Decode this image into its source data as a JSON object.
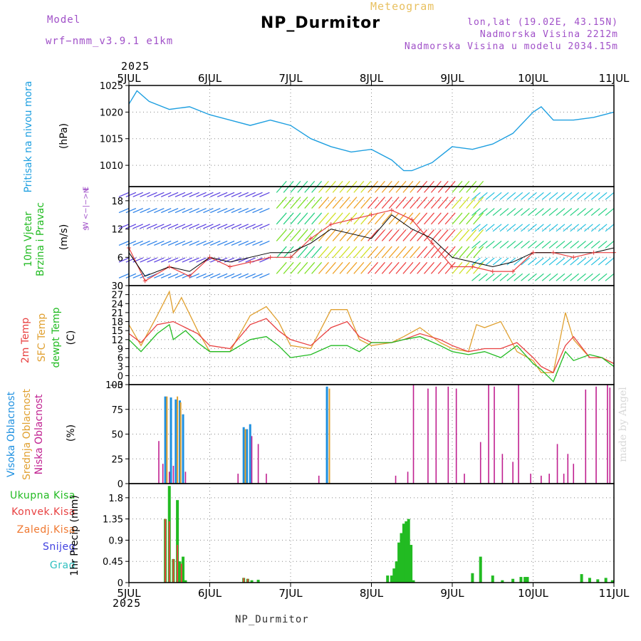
{
  "header": {
    "model_label": "Model",
    "model_name": "wrf−nmm_v3.9.1 e1km",
    "meteogram": "Meteogram",
    "title": "NP_Durmitor",
    "lonlat": "lon,lat (19.02E, 43.15N)",
    "altitude": "Nadmorska Visina 2212m",
    "model_altitude": "Nadmorska Visina u modelu 2034.15m",
    "year_top": "2025",
    "year_bottom": "2025",
    "footer": "NP_Durmitor",
    "credit": "made by Angel"
  },
  "colors": {
    "pressure": "#1e9fe0",
    "temp2m": "#e84040",
    "sfc_temp": "#e0a030",
    "dewpt": "#22bb22",
    "high_cloud": "#1e90e0",
    "mid_cloud": "#e0a030",
    "low_cloud": "#c02090",
    "total_precip": "#22bb22",
    "conv_precip": "#e84040",
    "gridline": "#888888"
  },
  "panel_labels": {
    "pressure": [
      "Pritisak na nivou mora",
      "(hPa)"
    ],
    "wind": [
      "10m Vjetar",
      "Brzina i Pravac",
      "(m/s)"
    ],
    "wind_compass": [
      "N",
      "W <−|−> E",
      "S"
    ],
    "temp": [
      "2m Temp",
      "SFC Temp",
      "dewpt Temp",
      "(C)"
    ],
    "cloud": [
      "Visoka Oblacnost",
      "Srednja Oblacnost",
      "Niska Oblacnost",
      "(%)"
    ],
    "precip_legend": [
      "Ukupna Kisa",
      "Konvek.Kisa",
      "Zaledj.Kisa",
      "Snijeg",
      "Grad"
    ],
    "precip_unit": "1hr Precip (mm)"
  },
  "chart_data": [
    {
      "type": "line",
      "name": "pressure",
      "x_labels": [
        "5JUL",
        "6JUL",
        "7JUL",
        "8JUL",
        "9JUL",
        "10JUL",
        "11JUL"
      ],
      "x_unit": "day (5 Jul 00 = 0)",
      "ylim": [
        1006,
        1025
      ],
      "yticks": [
        1010,
        1015,
        1020,
        1025
      ],
      "series": [
        {
          "key": "pressure",
          "x": [
            0,
            0.1,
            0.25,
            0.5,
            0.75,
            1.0,
            1.25,
            1.5,
            1.75,
            2.0,
            2.25,
            2.5,
            2.75,
            3.0,
            3.25,
            3.4,
            3.5,
            3.75,
            4.0,
            4.25,
            4.5,
            4.75,
            5.0,
            5.1,
            5.25,
            5.5,
            5.75,
            6.0
          ],
          "values": [
            1021.5,
            1024,
            1022,
            1020.5,
            1021,
            1019.5,
            1018.5,
            1017.5,
            1018.5,
            1017.5,
            1015,
            1013.5,
            1012.5,
            1013,
            1011,
            1009,
            1009,
            1010.5,
            1013.5,
            1013,
            1014,
            1016,
            1020,
            1021,
            1018.5,
            1018.5,
            1019,
            1020
          ]
        }
      ]
    },
    {
      "type": "line",
      "name": "wind",
      "ylim": [
        0,
        21
      ],
      "yticks": [
        0,
        6,
        12,
        18
      ],
      "series": [
        {
          "key": "speed",
          "x": [
            0,
            0.2,
            0.5,
            0.75,
            1.0,
            1.25,
            1.5,
            1.75,
            2.0,
            2.25,
            2.5,
            2.75,
            3.0,
            3.25,
            3.5,
            3.75,
            4.0,
            4.25,
            4.5,
            4.75,
            5.0,
            5.25,
            5.5,
            5.75,
            6.0
          ],
          "values": [
            7,
            2,
            4,
            3,
            6,
            5,
            6,
            7,
            7,
            9,
            12,
            11,
            10,
            15,
            12,
            10,
            6,
            5,
            4,
            5,
            7,
            7,
            7,
            7,
            8
          ]
        },
        {
          "key": "gust",
          "x": [
            0,
            0.2,
            0.5,
            0.75,
            1.0,
            1.25,
            1.5,
            1.75,
            2.0,
            2.25,
            2.5,
            2.75,
            3.0,
            3.25,
            3.5,
            3.75,
            4.0,
            4.25,
            4.5,
            4.75,
            5.0,
            5.25,
            5.5,
            5.75,
            6.0
          ],
          "values": [
            8,
            1,
            4,
            2,
            6,
            4,
            5,
            6,
            6,
            10,
            13,
            14,
            15,
            16,
            14,
            9,
            4,
            4,
            3,
            3,
            7,
            7,
            6,
            7,
            7
          ]
        }
      ]
    },
    {
      "type": "line",
      "name": "temperature",
      "ylim": [
        -3,
        30
      ],
      "yticks": [
        -3,
        0,
        3,
        6,
        9,
        12,
        15,
        18,
        21,
        24,
        27,
        30
      ],
      "series": [
        {
          "key": "temp2m",
          "x": [
            0,
            0.15,
            0.35,
            0.55,
            0.7,
            0.85,
            1.0,
            1.25,
            1.5,
            1.7,
            1.85,
            2.0,
            2.25,
            2.5,
            2.7,
            2.85,
            3.0,
            3.25,
            3.4,
            3.6,
            3.85,
            4.0,
            4.2,
            4.4,
            4.6,
            4.8,
            5.0,
            5.1,
            5.25,
            5.4,
            5.5,
            5.7,
            5.85,
            6.0
          ],
          "values": [
            14,
            11,
            17,
            18,
            16,
            14,
            10,
            9,
            17,
            19,
            15,
            12,
            10,
            16,
            18,
            13,
            11,
            11,
            12,
            14,
            12,
            10,
            8,
            9,
            9,
            11,
            6,
            3,
            1,
            10,
            13,
            6,
            6,
            4
          ]
        },
        {
          "key": "sfc_temp",
          "x": [
            0,
            0.15,
            0.35,
            0.5,
            0.55,
            0.65,
            0.85,
            1.0,
            1.25,
            1.5,
            1.7,
            1.85,
            2.0,
            2.25,
            2.5,
            2.7,
            2.85,
            3.0,
            3.25,
            3.4,
            3.6,
            3.85,
            4.0,
            4.2,
            4.3,
            4.4,
            4.6,
            4.8,
            5.0,
            5.1,
            5.25,
            5.4,
            5.5,
            5.7,
            5.85,
            6.0
          ],
          "values": [
            17,
            10,
            20,
            28,
            21,
            26,
            15,
            8,
            8,
            20,
            23,
            18,
            10,
            9,
            22,
            22,
            12,
            10,
            11,
            13,
            16,
            11,
            9,
            8,
            17,
            16,
            18,
            8,
            5,
            1,
            1,
            21,
            12,
            6,
            6,
            4
          ]
        },
        {
          "key": "dewpt",
          "x": [
            0,
            0.15,
            0.35,
            0.5,
            0.55,
            0.7,
            0.85,
            1.0,
            1.25,
            1.5,
            1.7,
            1.85,
            2.0,
            2.25,
            2.5,
            2.7,
            2.85,
            3.0,
            3.25,
            3.4,
            3.6,
            3.85,
            4.0,
            4.2,
            4.4,
            4.6,
            4.8,
            5.0,
            5.1,
            5.25,
            5.4,
            5.5,
            5.7,
            5.85,
            6.0
          ],
          "values": [
            12,
            8,
            14,
            17,
            12,
            15,
            11,
            8,
            8,
            12,
            13,
            10,
            6,
            7,
            10,
            10,
            8,
            11,
            11,
            12,
            13,
            10,
            8,
            7,
            8,
            6,
            10,
            4,
            2,
            -2,
            8,
            5,
            7,
            6,
            3
          ]
        }
      ]
    },
    {
      "type": "bar",
      "name": "cloud",
      "ylim": [
        0,
        100
      ],
      "yticks": [
        0,
        25,
        50,
        75,
        100
      ],
      "series": [
        {
          "key": "high",
          "x": [
            0.45,
            0.52,
            0.58,
            0.63,
            0.67,
            1.42,
            1.46,
            1.5,
            2.45
          ],
          "values": [
            88,
            87,
            85,
            84,
            70,
            57,
            55,
            60,
            98
          ]
        },
        {
          "key": "mid",
          "x": [
            0.47,
            0.6,
            0.64,
            1.44,
            2.48
          ],
          "values": [
            88,
            88,
            82,
            55,
            96
          ]
        },
        {
          "key": "low",
          "x": [
            0.37,
            0.42,
            0.5,
            0.55,
            0.7,
            1.35,
            1.52,
            1.6,
            1.7,
            2.35,
            3.3,
            3.45,
            3.52,
            3.7,
            3.8,
            3.95,
            4.05,
            4.15,
            4.35,
            4.45,
            4.52,
            4.62,
            4.75,
            4.82,
            4.97,
            5.1,
            5.2,
            5.3,
            5.38,
            5.43,
            5.5,
            5.65,
            5.78,
            5.92,
            5.95
          ],
          "values": [
            43,
            20,
            12,
            18,
            12,
            10,
            48,
            40,
            10,
            8,
            8,
            12,
            100,
            96,
            98,
            98,
            96,
            10,
            42,
            100,
            98,
            30,
            22,
            100,
            10,
            8,
            10,
            40,
            10,
            30,
            20,
            95,
            98,
            100,
            97
          ]
        }
      ]
    },
    {
      "type": "bar",
      "name": "precipitation",
      "ylim": [
        0,
        2.1
      ],
      "yticks": [
        0,
        0.45,
        0.9,
        1.35,
        1.8
      ],
      "series": [
        {
          "key": "total",
          "x": [
            0.45,
            0.5,
            0.55,
            0.6,
            0.63,
            0.67,
            0.7,
            1.42,
            1.47,
            1.52,
            1.6,
            3.2,
            3.25,
            3.28,
            3.31,
            3.34,
            3.37,
            3.4,
            3.43,
            3.46,
            3.49,
            3.52,
            4.25,
            4.35,
            4.5,
            4.62,
            4.75,
            4.85,
            4.9,
            4.93,
            5.6,
            5.7,
            5.8,
            5.9,
            5.98
          ],
          "values": [
            1.35,
            2.05,
            0.5,
            1.75,
            0.45,
            0.55,
            0.05,
            0.1,
            0.08,
            0.05,
            0.06,
            0.15,
            0.15,
            0.3,
            0.45,
            0.85,
            1.05,
            1.25,
            1.3,
            1.35,
            0.8,
            0.05,
            0.2,
            0.55,
            0.15,
            0.05,
            0.08,
            0.12,
            0.12,
            0.12,
            0.18,
            0.1,
            0.07,
            0.1,
            0.05
          ]
        },
        {
          "key": "convective",
          "x": [
            0.45,
            0.5,
            0.55,
            0.6,
            0.65,
            1.42,
            1.47
          ],
          "values": [
            1.35,
            1.3,
            0.5,
            0.8,
            0.4,
            0.1,
            0.08
          ]
        }
      ]
    }
  ]
}
